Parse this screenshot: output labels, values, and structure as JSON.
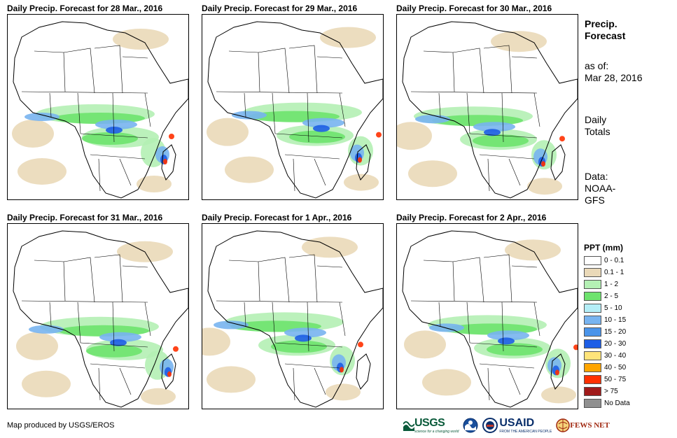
{
  "panels": [
    {
      "title": "Daily Precip. Forecast for 28 Mar., 2016"
    },
    {
      "title": "Daily Precip. Forecast for 29 Mar., 2016"
    },
    {
      "title": "Daily Precip. Forecast for 30 Mar., 2016"
    },
    {
      "title": "Daily Precip. Forecast for 31 Mar., 2016"
    },
    {
      "title": "Daily Precip. Forecast for 1 Apr., 2016"
    },
    {
      "title": "Daily Precip. Forecast for 2 Apr., 2016"
    }
  ],
  "sidebar": {
    "title_line1": "Precip.",
    "title_line2": "Forecast",
    "asof_label": "as of:",
    "asof_date": "Mar 28, 2016",
    "totals_line1": "Daily",
    "totals_line2": "Totals",
    "data_line1": "Data:",
    "data_line2": "NOAA-",
    "data_line3": "GFS"
  },
  "legend": {
    "title": "PPT (mm)",
    "items": [
      {
        "label": "0 - 0.1",
        "color": "#ffffff"
      },
      {
        "label": "0.1 - 1",
        "color": "#ead9b8"
      },
      {
        "label": "1 - 2",
        "color": "#b4f0b4"
      },
      {
        "label": "2 - 5",
        "color": "#6ee36e"
      },
      {
        "label": "5 - 10",
        "color": "#b4eef7"
      },
      {
        "label": "10 - 15",
        "color": "#78b4f0"
      },
      {
        "label": "15 - 20",
        "color": "#4a94ea"
      },
      {
        "label": "20 - 30",
        "color": "#1e5ee6"
      },
      {
        "label": "30 - 40",
        "color": "#ffe47a"
      },
      {
        "label": "40 - 50",
        "color": "#ffa500"
      },
      {
        "label": "50 - 75",
        "color": "#ff3000"
      },
      {
        "label": "> 75",
        "color": "#a01a1a"
      },
      {
        "label": "No Data",
        "color": "#909090"
      }
    ]
  },
  "footer": {
    "credit": "Map produced by USGS/EROS",
    "logos": {
      "usgs": "USGS",
      "usgs_tagline": "science for a changing world",
      "usaid": "USAID",
      "usaid_tagline": "FROM THE AMERICAN PEOPLE",
      "fews": "FEWS NET"
    }
  }
}
